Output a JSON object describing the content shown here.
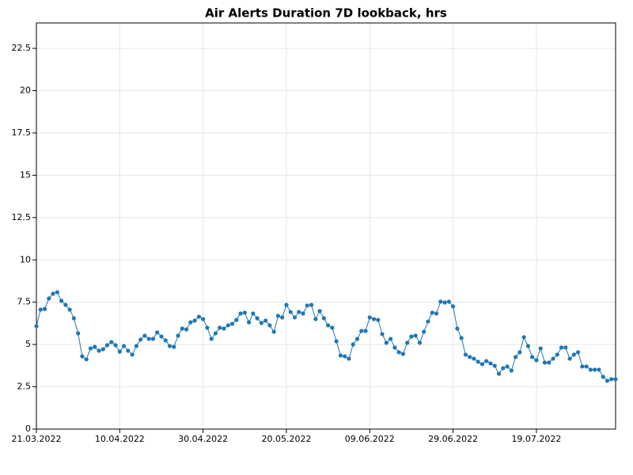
{
  "chart_data": {
    "type": "line",
    "title": "Air Alerts Duration 7D lookback, hrs",
    "color": "#1f77b4",
    "grid": true,
    "x": [
      "2022-03-21",
      "2022-03-22",
      "2022-03-23",
      "2022-03-24",
      "2022-03-25",
      "2022-03-26",
      "2022-03-27",
      "2022-03-28",
      "2022-03-29",
      "2022-03-30",
      "2022-03-31",
      "2022-04-01",
      "2022-04-02",
      "2022-04-03",
      "2022-04-04",
      "2022-04-05",
      "2022-04-06",
      "2022-04-07",
      "2022-04-08",
      "2022-04-09",
      "2022-04-10",
      "2022-04-11",
      "2022-04-12",
      "2022-04-13",
      "2022-04-14",
      "2022-04-15",
      "2022-04-16",
      "2022-04-17",
      "2022-04-18",
      "2022-04-19",
      "2022-04-20",
      "2022-04-21",
      "2022-04-22",
      "2022-04-23",
      "2022-04-24",
      "2022-04-25",
      "2022-04-26",
      "2022-04-27",
      "2022-04-28",
      "2022-04-29",
      "2022-04-30",
      "2022-05-01",
      "2022-05-02",
      "2022-05-03",
      "2022-05-04",
      "2022-05-05",
      "2022-05-06",
      "2022-05-07",
      "2022-05-08",
      "2022-05-09",
      "2022-05-10",
      "2022-05-11",
      "2022-05-12",
      "2022-05-13",
      "2022-05-14",
      "2022-05-15",
      "2022-05-16",
      "2022-05-17",
      "2022-05-18",
      "2022-05-19",
      "2022-05-20",
      "2022-05-21",
      "2022-05-22",
      "2022-05-23",
      "2022-05-24",
      "2022-05-25",
      "2022-05-26",
      "2022-05-27",
      "2022-05-28",
      "2022-05-29",
      "2022-05-30",
      "2022-05-31",
      "2022-06-01",
      "2022-06-02",
      "2022-06-03",
      "2022-06-04",
      "2022-06-05",
      "2022-06-06",
      "2022-06-07",
      "2022-06-08",
      "2022-06-09",
      "2022-06-10",
      "2022-06-11",
      "2022-06-12",
      "2022-06-13",
      "2022-06-14",
      "2022-06-15",
      "2022-06-16",
      "2022-06-17",
      "2022-06-18",
      "2022-06-19",
      "2022-06-20",
      "2022-06-21",
      "2022-06-22",
      "2022-06-23",
      "2022-06-24",
      "2022-06-25",
      "2022-06-26",
      "2022-06-27",
      "2022-06-28",
      "2022-06-29",
      "2022-06-30",
      "2022-07-01",
      "2022-07-02",
      "2022-07-03",
      "2022-07-04",
      "2022-07-05",
      "2022-07-06",
      "2022-07-07",
      "2022-07-08",
      "2022-07-09",
      "2022-07-10",
      "2022-07-11",
      "2022-07-12",
      "2022-07-13",
      "2022-07-14",
      "2022-07-15",
      "2022-07-16",
      "2022-07-17",
      "2022-07-18",
      "2022-07-19",
      "2022-07-20",
      "2022-07-21",
      "2022-07-22",
      "2022-07-23",
      "2022-07-24",
      "2022-07-25",
      "2022-07-26",
      "2022-07-27",
      "2022-07-28",
      "2022-07-29",
      "2022-07-30",
      "2022-07-31",
      "2022-08-01",
      "2022-08-02",
      "2022-08-03",
      "2022-08-04",
      "2022-08-05",
      "2022-08-06",
      "2022-08-07"
    ],
    "values": [
      6.08,
      7.06,
      7.1,
      7.72,
      8.0,
      8.09,
      7.58,
      7.34,
      7.06,
      6.55,
      5.66,
      4.3,
      4.12,
      4.77,
      4.86,
      4.63,
      4.72,
      4.96,
      5.14,
      4.96,
      4.58,
      4.91,
      4.63,
      4.4,
      4.91,
      5.29,
      5.52,
      5.33,
      5.33,
      5.71,
      5.47,
      5.24,
      4.91,
      4.86,
      5.52,
      5.94,
      5.89,
      6.31,
      6.41,
      6.64,
      6.5,
      5.99,
      5.33,
      5.66,
      5.99,
      5.94,
      6.13,
      6.22,
      6.45,
      6.83,
      6.88,
      6.31,
      6.83,
      6.55,
      6.27,
      6.41,
      6.13,
      5.75,
      6.69,
      6.6,
      7.34,
      6.92,
      6.6,
      6.92,
      6.83,
      7.3,
      7.34,
      6.5,
      6.97,
      6.55,
      6.13,
      5.99,
      5.19,
      4.35,
      4.3,
      4.16,
      5.0,
      5.33,
      5.8,
      5.8,
      6.6,
      6.5,
      6.45,
      5.61,
      5.1,
      5.33,
      4.82,
      4.54,
      4.44,
      5.1,
      5.47,
      5.52,
      5.1,
      5.75,
      6.36,
      6.88,
      6.83,
      7.53,
      7.48,
      7.53,
      7.25,
      5.94,
      5.38,
      4.4,
      4.26,
      4.16,
      3.98,
      3.84,
      4.02,
      3.88,
      3.74,
      3.27,
      3.6,
      3.7,
      3.46,
      4.26,
      4.54,
      5.43,
      4.91,
      4.26,
      4.07,
      4.77,
      3.93,
      3.93,
      4.16,
      4.4,
      4.82,
      4.82,
      4.16,
      4.4,
      4.54,
      3.7,
      3.7,
      3.51,
      3.51,
      3.51,
      3.09,
      2.85,
      2.95,
      2.95
    ],
    "xlim": [
      "2022-03-21",
      "2022-08-07"
    ],
    "xticks": [
      {
        "value": "2022-03-21",
        "label": "21.03.2022"
      },
      {
        "value": "2022-04-10",
        "label": "10.04.2022"
      },
      {
        "value": "2022-04-30",
        "label": "30.04.2022"
      },
      {
        "value": "2022-05-20",
        "label": "20.05.2022"
      },
      {
        "value": "2022-06-09",
        "label": "09.06.2022"
      },
      {
        "value": "2022-06-29",
        "label": "29.06.2022"
      },
      {
        "value": "2022-07-19",
        "label": "19.07.2022"
      }
    ],
    "ylim": [
      0,
      24
    ],
    "yticks": [
      0,
      2.5,
      5,
      7.5,
      10,
      12.5,
      15,
      17.5,
      20,
      22.5
    ]
  }
}
